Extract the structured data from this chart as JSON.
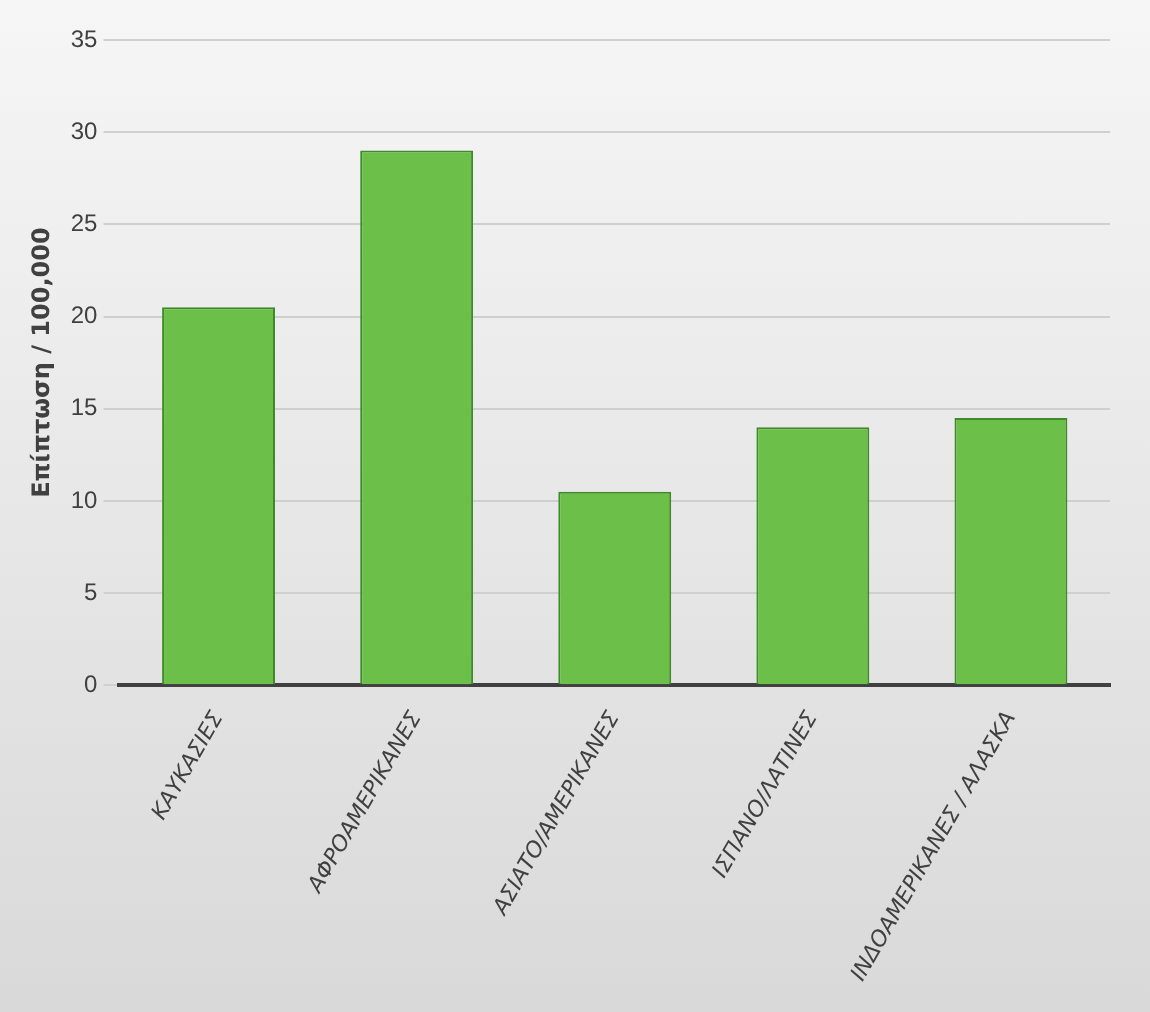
{
  "chart_data": {
    "type": "bar",
    "ylabel": "Επίπτωση / 100,000",
    "categories": [
      "ΚΑΥΚΑΣΙΕΣ",
      "ΑΦΡΟΑΜΕΡΙΚΑΝΕΣ",
      "ΑΣΙΑΤΟ/ΑΜΕΡΙΚΑΝΕΣ",
      "ΙΣΠΑΝΟ/ΛΑΤΙΝΕΣ",
      "ΙΝΔΟΑΜΕΡΙΚΑΝΕΣ / ΑΛΑΣΚΑ"
    ],
    "values": [
      20.5,
      29,
      10.5,
      14,
      14.5
    ],
    "color": "#6cc04a",
    "ylim": [
      0,
      35
    ],
    "yticks": [
      0,
      5,
      10,
      15,
      20,
      25,
      30,
      35
    ],
    "grid": "y",
    "legend": false
  }
}
